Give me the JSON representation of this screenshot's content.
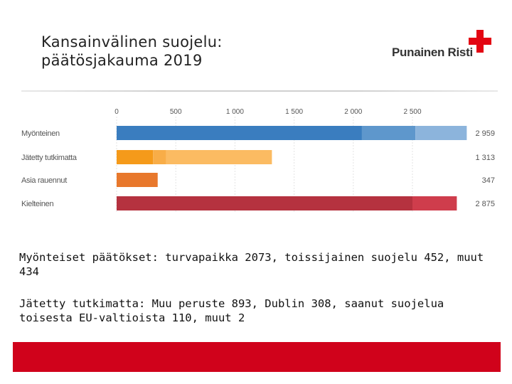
{
  "slide": {
    "title_line1": "Kansainvälinen suojelu:",
    "title_line2": "päätösjakauma 2019",
    "logo_text": "Punainen Risti",
    "note1": "Myönteiset päätökset: turvapaikka 2073, toissijainen suojelu 452, muut 434",
    "note2": "Jätetty tutkimatta: Muu peruste 893, Dublin 308, saanut suojelua toisesta EU-valtioista 110, muut 2",
    "brand_color": "#d0021b"
  },
  "chart_data": {
    "type": "bar",
    "orientation": "horizontal",
    "stacked": true,
    "title": "",
    "xlim": [
      0,
      3000
    ],
    "xticks": [
      0,
      500,
      1000,
      1500,
      2000,
      2500
    ],
    "xtick_labels": [
      "0",
      "500",
      "1 000",
      "1 500",
      "2 000",
      "2 500"
    ],
    "categories": [
      "Myönteinen",
      "Jätetty tutkimatta",
      "Asia rauennut",
      "Kielteinen"
    ],
    "totals": [
      2959,
      1313,
      347,
      2875
    ],
    "total_labels": [
      "2 959",
      "1 313",
      "347",
      "2 875"
    ],
    "segments": [
      [
        {
          "value": 2073,
          "color": "#3a7dbf"
        },
        {
          "value": 452,
          "color": "#5e97cc"
        },
        {
          "value": 434,
          "color": "#8cb4dc"
        }
      ],
      [
        {
          "value": 308,
          "color": "#f59a1a"
        },
        {
          "value": 110,
          "color": "#f8ad48"
        },
        {
          "value": 893,
          "color": "#fbbb62"
        },
        {
          "value": 2,
          "color": "#fbbb62"
        }
      ],
      [
        {
          "value": 347,
          "color": "#e8782c"
        }
      ],
      [
        {
          "value": 2500,
          "color": "#b5323f"
        },
        {
          "value": 375,
          "color": "#cf3d4c"
        }
      ]
    ]
  }
}
